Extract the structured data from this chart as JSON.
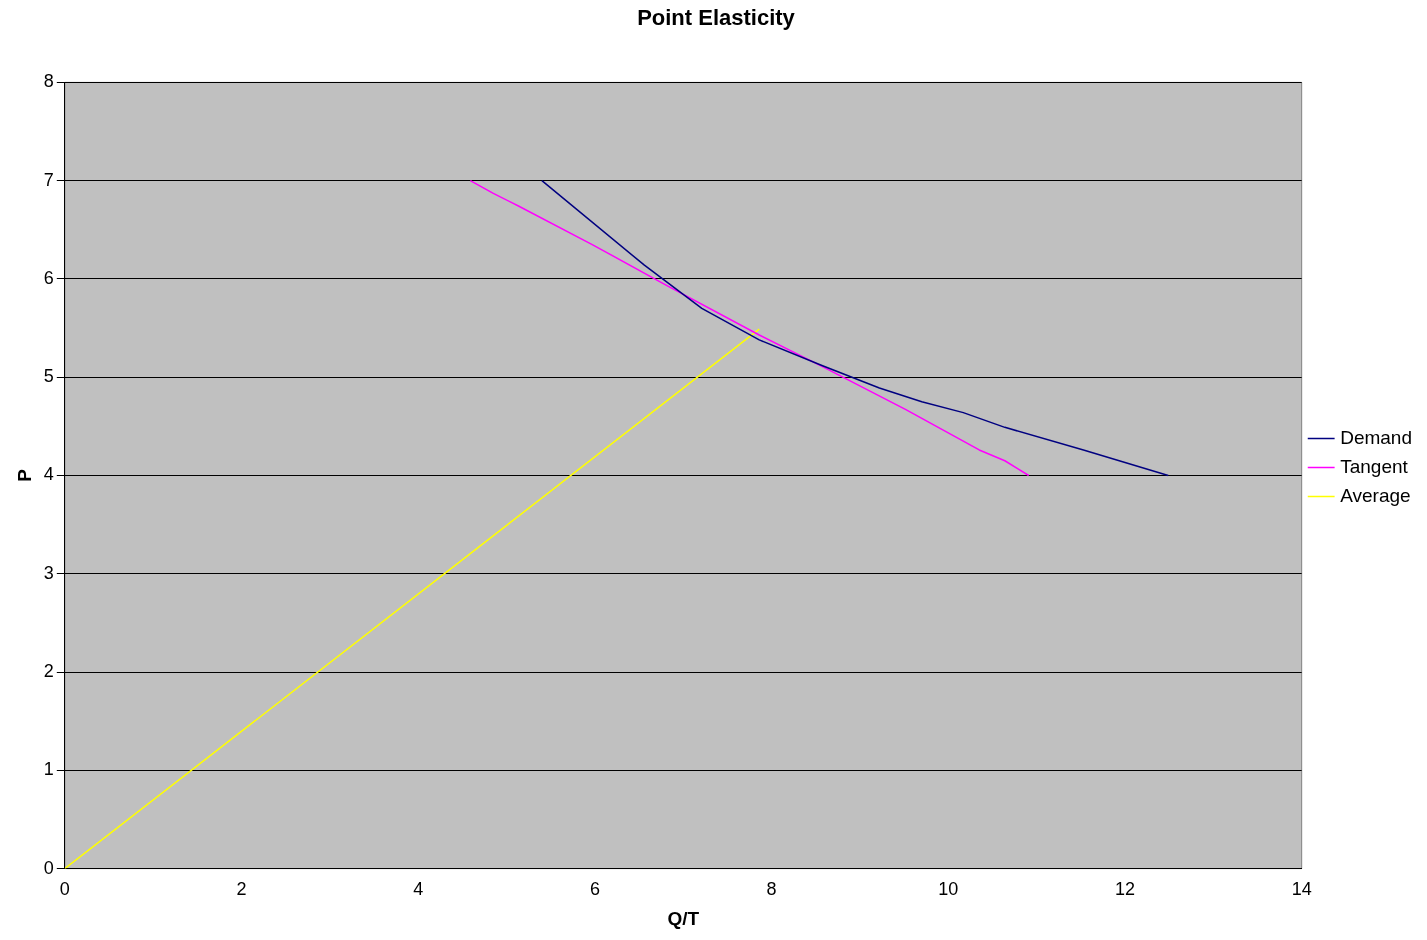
{
  "chart_data": {
    "type": "line",
    "title": "Point Elasticity",
    "xlabel": "Q/T",
    "ylabel": "P",
    "xlim": [
      0,
      14
    ],
    "xticks": [
      0,
      2,
      4,
      6,
      8,
      10,
      12,
      14
    ],
    "ylim": [
      0,
      8
    ],
    "yticks": [
      0,
      1,
      2,
      3,
      4,
      5,
      6,
      7,
      8
    ],
    "grid": "y",
    "legend": "right",
    "marker": "none",
    "line_style": "solid",
    "series": [
      {
        "name": "Demand",
        "color": "#000080",
        "x": [
          5.4,
          6.56,
          7.21,
          7.86,
          8.57,
          9.22,
          9.7,
          10.17,
          10.64,
          11.53,
          12.49
        ],
        "values": [
          7,
          6.14,
          5.7,
          5.38,
          5.12,
          4.89,
          4.75,
          4.64,
          4.49,
          4.26,
          4
        ]
      },
      {
        "name": "Tangent",
        "color": "#ff00ff",
        "x": [
          4.59,
          4.85,
          5.14,
          5.97,
          6.8,
          7.86,
          8.57,
          9.52,
          10.35,
          10.64,
          10.91
        ],
        "values": [
          7,
          6.87,
          6.74,
          6.35,
          5.94,
          5.43,
          5.11,
          4.67,
          4.26,
          4.15,
          4
        ]
      },
      {
        "name": "Average",
        "color": "#ffff00",
        "x": [
          0,
          7.86
        ],
        "values": [
          0,
          5.49
        ]
      }
    ]
  }
}
